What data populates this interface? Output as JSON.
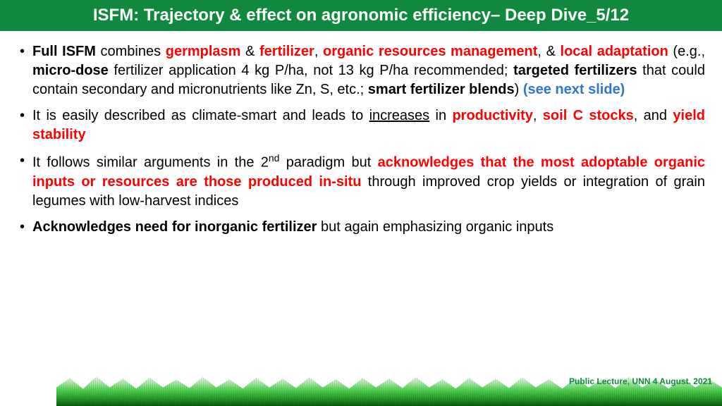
{
  "colors": {
    "header_bg": "#10893e",
    "header_text": "#ffffff",
    "body_text": "#000000",
    "highlight_red": "#ff0000",
    "link_blue": "#2e75d6",
    "footer_text": "#10893e"
  },
  "typography": {
    "title_fontsize": 24,
    "body_fontsize": 20,
    "footer_fontsize": 12,
    "font_family": "Arial"
  },
  "title": "ISFM: Trajectory & effect on agronomic efficiency– Deep Dive_5/12",
  "bullets": [
    {
      "runs": [
        {
          "t": "Full ISFM",
          "cls": "bold"
        },
        {
          "t": " combines "
        },
        {
          "t": "germplasm",
          "cls": "red"
        },
        {
          "t": " & "
        },
        {
          "t": "fertilizer",
          "cls": "red"
        },
        {
          "t": ", "
        },
        {
          "t": "organic resources management",
          "cls": "red"
        },
        {
          "t": ", & "
        },
        {
          "t": "local adaptation",
          "cls": "red"
        },
        {
          "t": " (e.g., "
        },
        {
          "t": "micro-dose",
          "cls": "bold"
        },
        {
          "t": " fertilizer application 4 kg P/ha, not 13 kg P/ha recommended; "
        },
        {
          "t": "targeted fertilizers",
          "cls": "bold"
        },
        {
          "t": " that could contain secondary and micronutrients like Zn, S, etc.; "
        },
        {
          "t": "smart fertilizer blends",
          "cls": "bold"
        },
        {
          "t": ") "
        },
        {
          "t": "(see next slide)",
          "cls": "blue"
        }
      ]
    },
    {
      "runs": [
        {
          "t": "It is easily described as climate-smart and leads to "
        },
        {
          "t": "increases",
          "cls": "ul"
        },
        {
          "t": " in "
        },
        {
          "t": "productivity",
          "cls": "red"
        },
        {
          "t": ", "
        },
        {
          "t": "soil C stocks",
          "cls": "red"
        },
        {
          "t": ", and "
        },
        {
          "t": "yield stability",
          "cls": "red"
        }
      ]
    },
    {
      "runs": [
        {
          "t": "It follows similar arguments in the 2"
        },
        {
          "t": "nd",
          "sup": true
        },
        {
          "t": " paradigm but "
        },
        {
          "t": "acknowledges that the most adoptable organic inputs or resources are those produced in-situ",
          "cls": "red"
        },
        {
          "t": " through improved crop yields or integration of grain legumes with low-harvest indices"
        }
      ]
    },
    {
      "runs": [
        {
          "t": "Acknowledges need for inorganic fertilizer",
          "cls": "bold"
        },
        {
          "t": " but again emphasizing organic inputs"
        }
      ]
    }
  ],
  "footer": "Public Lecture, UNN 4 August. 2021"
}
